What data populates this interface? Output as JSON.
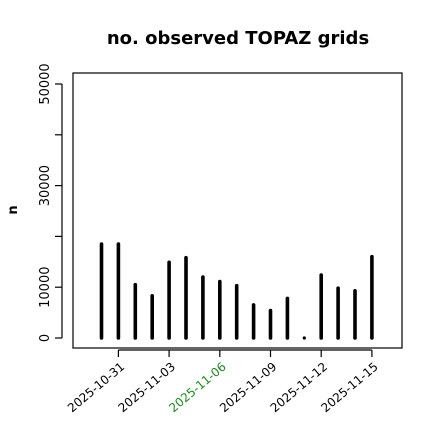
{
  "chart_data": {
    "type": "bar",
    "title": "no. observed TOPAZ grids",
    "xlabel": "",
    "ylabel": "n",
    "ylim": [
      0,
      52000
    ],
    "yticks": [
      0,
      10000,
      20000,
      30000,
      40000,
      50000
    ],
    "ytick_labels": [
      "0",
      "10000",
      "",
      "30000",
      "",
      "50000"
    ],
    "categories": [
      "2025-10-30",
      "2025-10-31",
      "2025-11-01",
      "2025-11-02",
      "2025-11-03",
      "2025-11-04",
      "2025-11-05",
      "2025-11-06",
      "2025-11-07",
      "2025-11-08",
      "2025-11-09",
      "2025-11-10",
      "2025-11-11",
      "2025-11-12",
      "2025-11-13",
      "2025-11-14",
      "2025-11-15"
    ],
    "values": [
      18500,
      18500,
      10500,
      8300,
      14900,
      15800,
      12000,
      11100,
      10300,
      6500,
      5400,
      7800,
      0,
      12400,
      9800,
      9300,
      16000
    ],
    "xtick_labels": [
      {
        "label": "2025-10-31",
        "color": "#000000"
      },
      {
        "label": "2025-11-03",
        "color": "#000000"
      },
      {
        "label": "2025-11-06",
        "color": "#1a8a1a"
      },
      {
        "label": "2025-11-09",
        "color": "#000000"
      },
      {
        "label": "2025-11-12",
        "color": "#000000"
      },
      {
        "label": "2025-11-15",
        "color": "#000000"
      }
    ],
    "bar_color": "#000000",
    "grid": false,
    "legend": "none"
  }
}
